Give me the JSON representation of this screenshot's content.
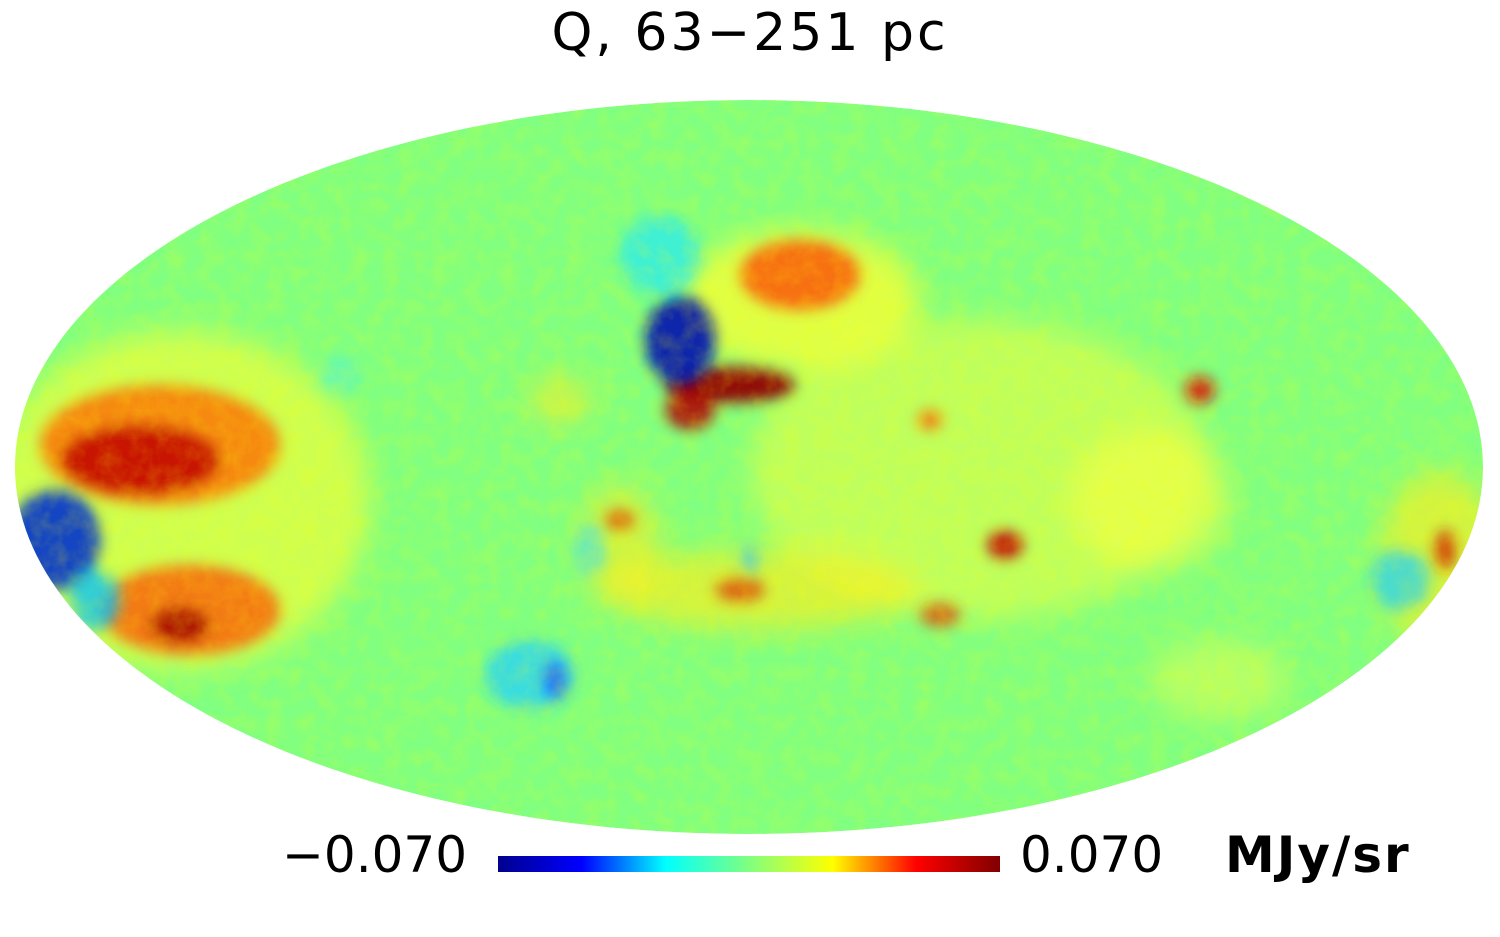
{
  "title": "Q, 63−251 pc",
  "colorbar": {
    "min_label": "−0.070",
    "max_label": "0.070",
    "unit": "MJy/sr",
    "min_value": -0.07,
    "max_value": 0.07,
    "colormap": [
      "#00008f",
      "#0000ff",
      "#00ffff",
      "#80ff80",
      "#ffff00",
      "#ff0000",
      "#800000"
    ]
  },
  "map": {
    "projection": "mollweide",
    "background_color": "#80ff80"
  }
}
